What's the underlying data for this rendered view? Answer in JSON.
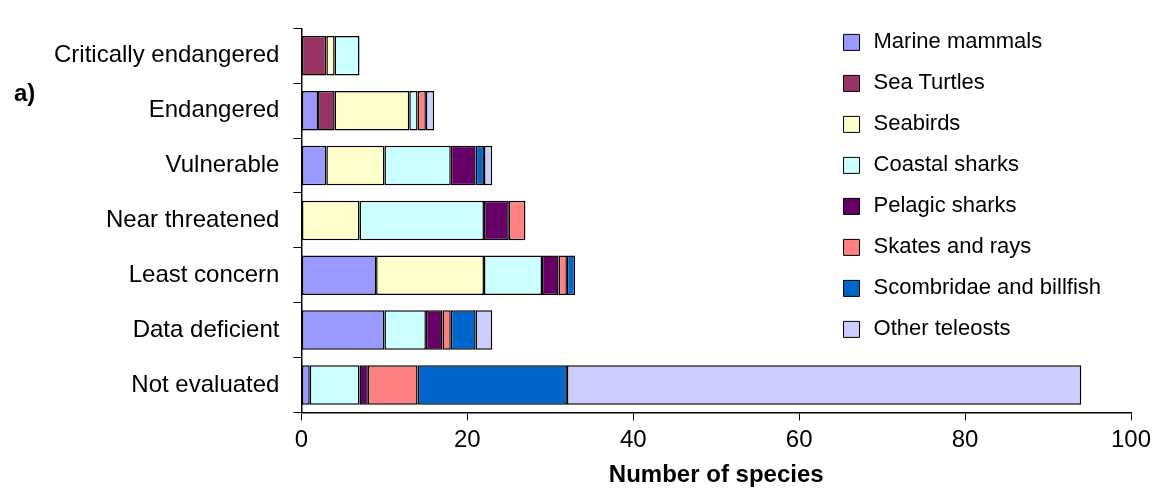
{
  "chart_data": {
    "type": "bar",
    "orientation": "horizontal",
    "stacked": true,
    "xlabel": "Number of species",
    "annotations": [
      "a)"
    ],
    "categories": [
      "Critically endangered",
      "Endangered",
      "Vulnerable",
      "Near threatened",
      "Least concern",
      "Data deficient",
      "Not evaluated"
    ],
    "series": [
      {
        "name": "Marine mammals",
        "color": "#9999ff",
        "values": [
          null,
          2,
          3,
          null,
          9,
          10,
          1
        ]
      },
      {
        "name": "Sea Turtles",
        "color": "#993366",
        "values": [
          3,
          2,
          null,
          null,
          null,
          null,
          null
        ]
      },
      {
        "name": "Seabirds",
        "color": "#ffffcc",
        "values": [
          1,
          9,
          7,
          7,
          13,
          null,
          null
        ]
      },
      {
        "name": "Coastal sharks",
        "color": "#ccffff",
        "values": [
          3,
          1,
          8,
          15,
          7,
          5,
          6
        ]
      },
      {
        "name": "Pelagic sharks",
        "color": "#660066",
        "values": [
          null,
          null,
          3,
          3,
          2,
          2,
          1
        ]
      },
      {
        "name": "Skates and rays",
        "color": "#ff8080",
        "values": [
          null,
          1,
          null,
          2,
          1,
          1,
          6
        ]
      },
      {
        "name": "Scombridae and billfish",
        "color": "#0066cc",
        "values": [
          null,
          null,
          1,
          null,
          1,
          3,
          18
        ]
      },
      {
        "name": "Other teleosts",
        "color": "#ccccff",
        "values": [
          null,
          1,
          1,
          null,
          null,
          2,
          62
        ]
      }
    ],
    "xlim": [
      0,
      100
    ],
    "xticks": [
      0,
      20,
      40,
      60,
      80,
      100
    ],
    "grid": false,
    "legend": "top right"
  }
}
